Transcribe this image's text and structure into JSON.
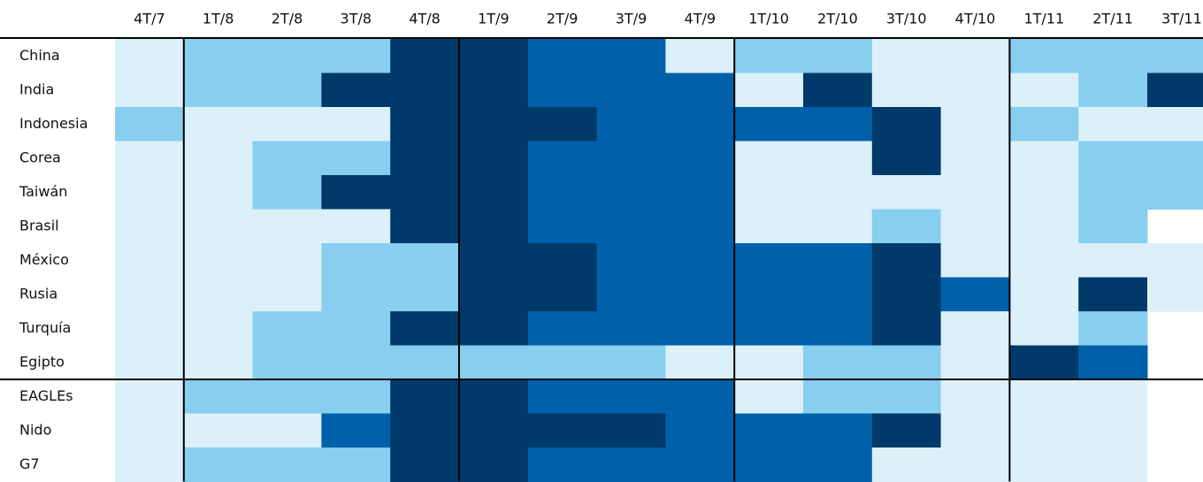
{
  "chart_data": {
    "type": "heatmap",
    "x": [
      "4T/7",
      "1T/8",
      "2T/8",
      "3T/8",
      "4T/8",
      "1T/9",
      "2T/9",
      "3T/9",
      "4T/9",
      "1T/10",
      "2T/10",
      "3T/10",
      "4T/10",
      "1T/11",
      "2T/11",
      "3T/11"
    ],
    "y": [
      "China",
      "India",
      "Indonesia",
      "Corea",
      "Taiwán",
      "Brasil",
      "México",
      "Rusia",
      "Turquía",
      "Egipto",
      "EAGLEs",
      "Nido",
      "G7"
    ],
    "values": [
      [
        1,
        2,
        2,
        2,
        4,
        4,
        3,
        3,
        1,
        2,
        2,
        1,
        1,
        2,
        2,
        2
      ],
      [
        1,
        2,
        2,
        4,
        4,
        4,
        3,
        3,
        3,
        1,
        4,
        1,
        1,
        1,
        2,
        4
      ],
      [
        2,
        1,
        1,
        1,
        4,
        4,
        4,
        3,
        3,
        3,
        3,
        4,
        1,
        2,
        1,
        1
      ],
      [
        1,
        1,
        2,
        2,
        4,
        4,
        3,
        3,
        3,
        1,
        1,
        4,
        1,
        1,
        2,
        2
      ],
      [
        1,
        1,
        2,
        4,
        4,
        4,
        3,
        3,
        3,
        1,
        1,
        1,
        1,
        1,
        2,
        2
      ],
      [
        1,
        1,
        1,
        1,
        4,
        4,
        3,
        3,
        3,
        1,
        1,
        2,
        1,
        1,
        2,
        null
      ],
      [
        1,
        1,
        1,
        2,
        2,
        4,
        4,
        3,
        3,
        3,
        3,
        4,
        1,
        1,
        1,
        1
      ],
      [
        1,
        1,
        1,
        2,
        2,
        4,
        4,
        3,
        3,
        3,
        3,
        4,
        3,
        1,
        4,
        1
      ],
      [
        1,
        1,
        2,
        2,
        4,
        4,
        3,
        3,
        3,
        3,
        3,
        4,
        1,
        1,
        2,
        null
      ],
      [
        1,
        1,
        2,
        2,
        2,
        2,
        2,
        2,
        1,
        1,
        2,
        2,
        1,
        4,
        3,
        null
      ],
      [
        1,
        2,
        2,
        2,
        4,
        4,
        3,
        3,
        3,
        1,
        2,
        2,
        1,
        1,
        1,
        null
      ],
      [
        1,
        1,
        1,
        3,
        4,
        4,
        4,
        4,
        3,
        3,
        3,
        4,
        1,
        1,
        1,
        null
      ],
      [
        1,
        2,
        2,
        2,
        4,
        4,
        3,
        3,
        3,
        3,
        3,
        1,
        1,
        1,
        1,
        null
      ]
    ],
    "colors": [
      "#dbf0f9",
      "#87ceef",
      "#0060aa",
      "#003a6a"
    ]
  }
}
